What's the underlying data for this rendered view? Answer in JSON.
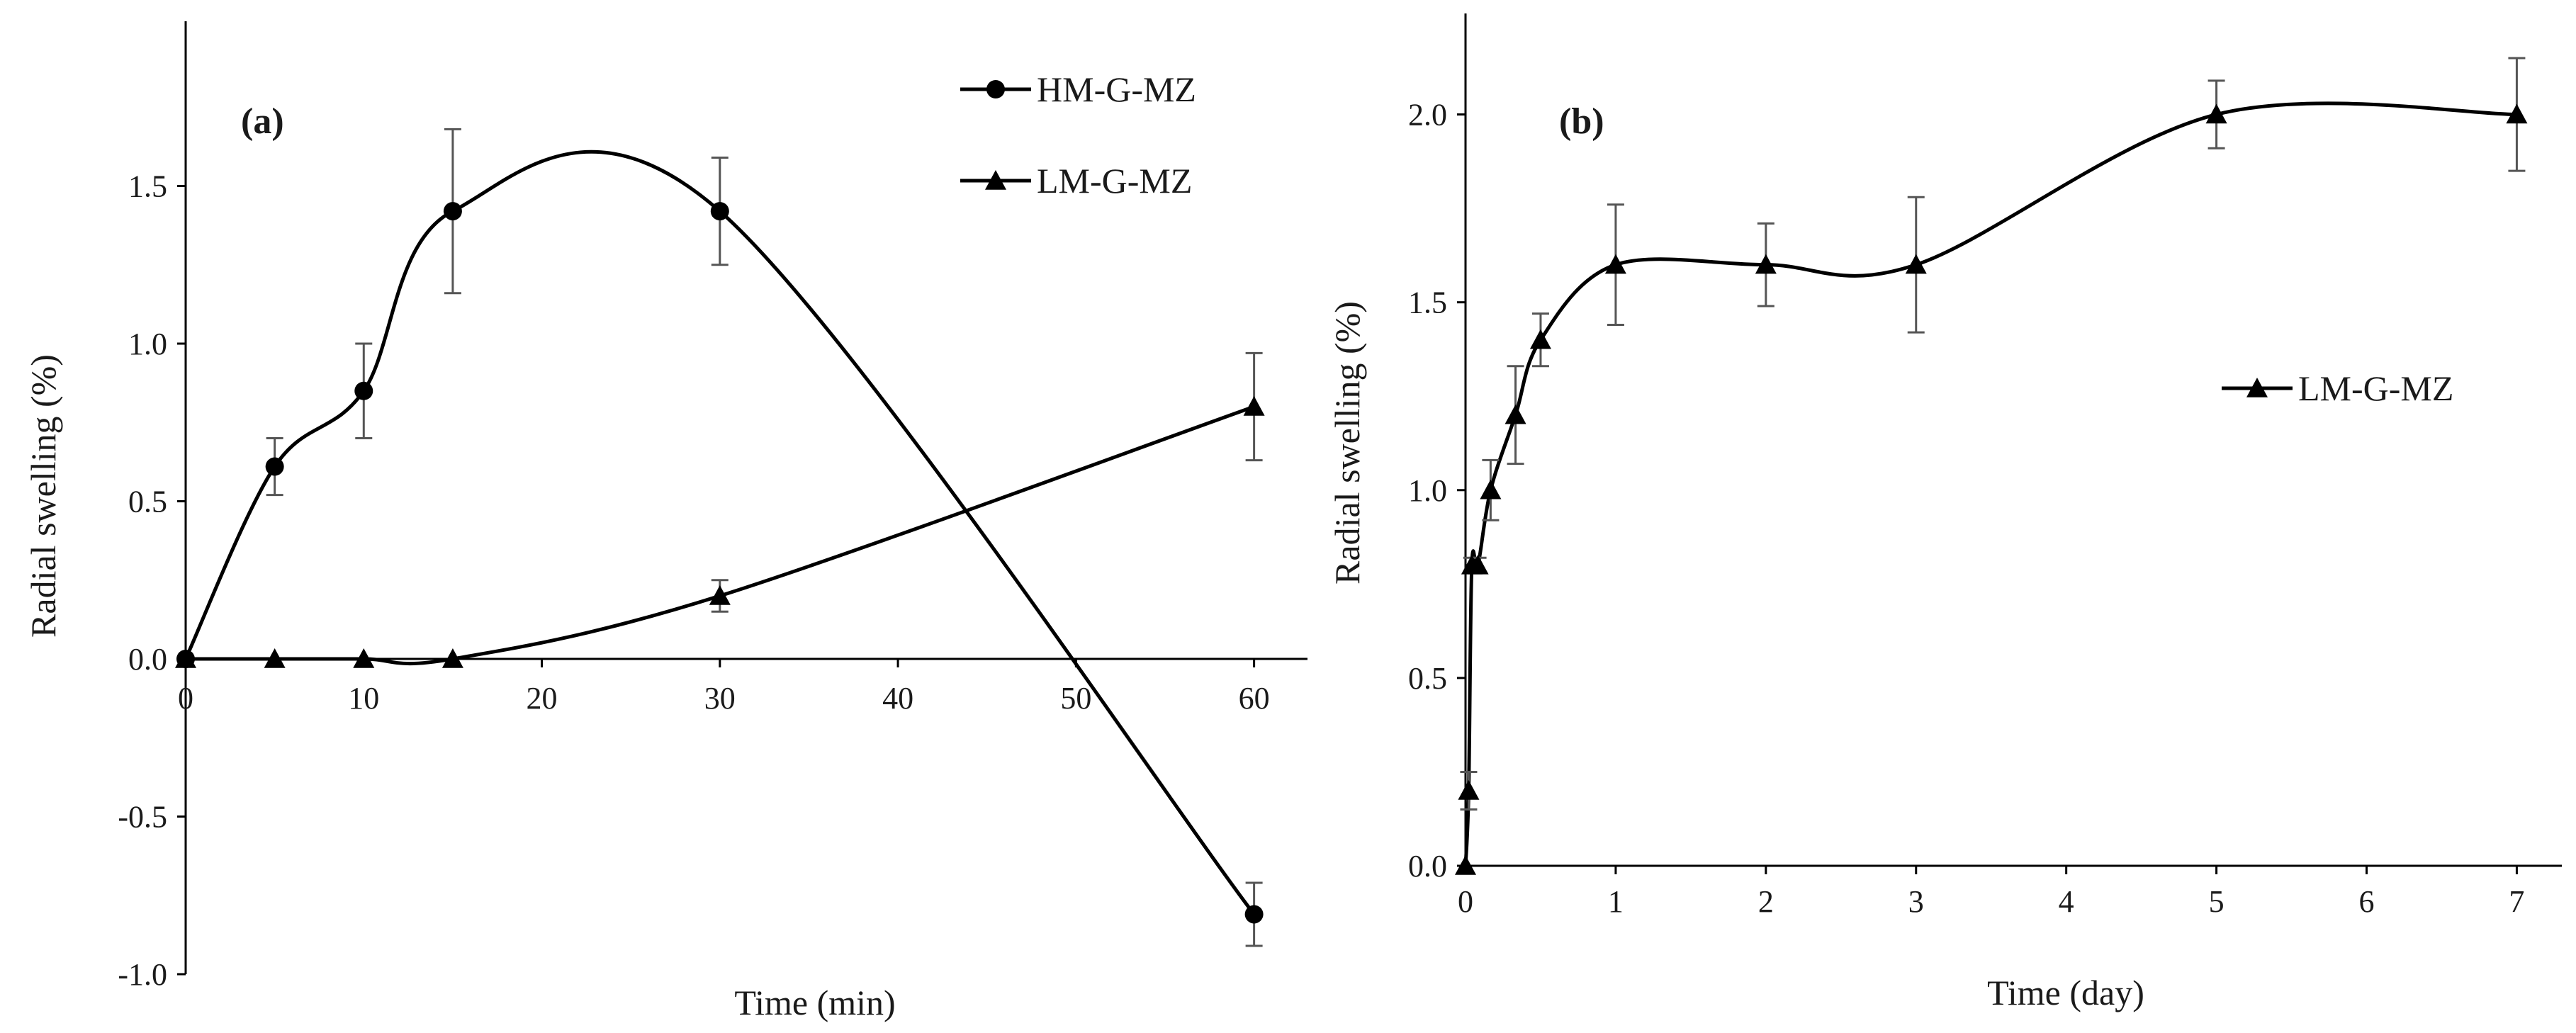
{
  "chart_data": [
    {
      "panel": "(a)",
      "type": "line",
      "xlabel": "Time (min)",
      "ylabel": "Radial swelling (%)",
      "xlim": [
        0,
        63
      ],
      "ylim": [
        -1.0,
        2.0
      ],
      "xticks": [
        0,
        10,
        20,
        30,
        40,
        50,
        60
      ],
      "yticks": [
        -1.0,
        -0.5,
        0.0,
        0.5,
        1.0,
        1.5
      ],
      "ytick_labels": [
        "-1.0",
        "-0.5",
        "0.0",
        "0.5",
        "1.0",
        "1.5"
      ],
      "xtick_labels": [
        "0",
        "10",
        "20",
        "30",
        "40",
        "50",
        "60"
      ],
      "legend_position": "top-right",
      "smooth": true,
      "series": [
        {
          "name": "HM-G-MZ",
          "marker": "circle",
          "x": [
            0,
            5,
            10,
            15,
            30,
            60
          ],
          "y": [
            0,
            0.61,
            0.85,
            1.42,
            1.42,
            -0.81
          ],
          "err": [
            0,
            0.09,
            0.15,
            0.26,
            0.17,
            0.1
          ]
        },
        {
          "name": "LM-G-MZ",
          "marker": "triangle",
          "x": [
            0,
            5,
            10,
            15,
            30,
            60
          ],
          "y": [
            0,
            0,
            0,
            0,
            0.2,
            0.8
          ],
          "err": [
            0,
            0,
            0,
            0,
            0.05,
            0.17
          ]
        }
      ]
    },
    {
      "panel": "(b)",
      "type": "line",
      "xlabel": "Time (day)",
      "ylabel": "Radial swelling (%)",
      "xlim": [
        0,
        7.3
      ],
      "ylim": [
        0,
        2.25
      ],
      "xticks": [
        0,
        1,
        2,
        3,
        4,
        5,
        6,
        7
      ],
      "yticks": [
        0,
        0.5,
        1.0,
        1.5,
        2.0
      ],
      "ytick_labels": [
        "0.0",
        "0.5",
        "1.0",
        "1.5",
        "2.0"
      ],
      "xtick_labels": [
        "0",
        "1",
        "2",
        "3",
        "4",
        "5",
        "6",
        "7"
      ],
      "legend_position": "middle-right",
      "smooth": true,
      "series": [
        {
          "name": "LM-G-MZ",
          "marker": "triangle",
          "x": [
            0,
            0.021,
            0.042,
            0.083,
            0.167,
            0.333,
            0.5,
            1,
            2,
            3,
            5,
            7
          ],
          "y": [
            0,
            0.2,
            0.8,
            0.8,
            1.0,
            1.2,
            1.4,
            1.6,
            1.6,
            1.6,
            2.0,
            2.0
          ],
          "err": [
            0,
            0.05,
            0.02,
            0.02,
            0.08,
            0.13,
            0.07,
            0.16,
            0.11,
            0.18,
            0.09,
            0.15
          ]
        }
      ]
    }
  ]
}
